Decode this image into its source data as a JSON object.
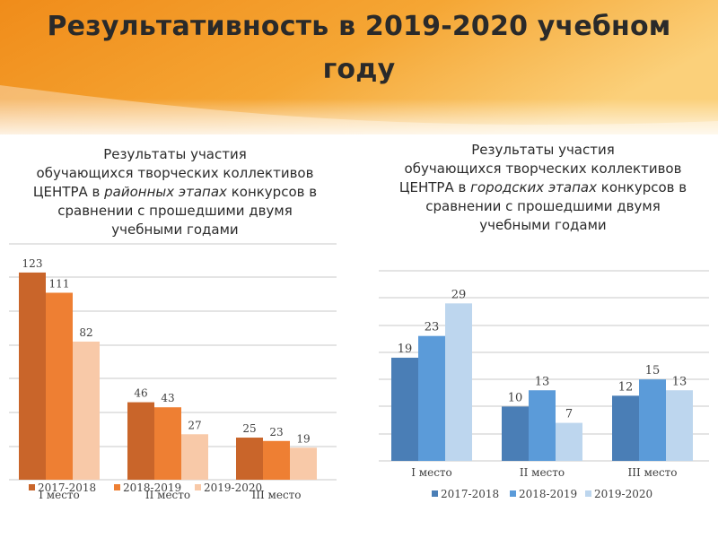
{
  "slide": {
    "title": "Результативность в 2019-2020 учебном году"
  },
  "colors": {
    "band_dark": "#f08c1a",
    "band_light": "#fbd07a",
    "title": "#2a2a2a"
  },
  "left_subtitle": {
    "line1": "Результаты участия",
    "line2": "обучающихся творческих коллективов",
    "line3_before": "ЦЕНТРА в ",
    "line3_italic": "районных этапах",
    "line3_after": " конкурсов в",
    "line4": "сравнении с прошедшими двумя",
    "line5": "учебными годами"
  },
  "right_subtitle": {
    "line1": "Результаты участия",
    "line2": "обучающихся творческих коллективов",
    "line3_before": "ЦЕНТРА в ",
    "line3_italic": "городских этапах",
    "line3_after": " конкурсов  в",
    "line4": "сравнении с прошедшими двумя",
    "line5": "учебными годами"
  },
  "chart_data": [
    {
      "type": "bar",
      "title": "",
      "categories": [
        "I место",
        "II место",
        "III место"
      ],
      "series": [
        {
          "name": "2017-2018",
          "values": [
            123,
            46,
            25
          ],
          "color": "#c9652a"
        },
        {
          "name": "2018-2019",
          "values": [
            111,
            43,
            23
          ],
          "color": "#ee7f33"
        },
        {
          "name": "2019-2020",
          "values": [
            82,
            27,
            19
          ],
          "color": "#f8c9a8"
        }
      ],
      "ylim": [
        0,
        140
      ],
      "grid": true,
      "legend": "bottom",
      "xlabel": "",
      "ylabel": ""
    },
    {
      "type": "bar",
      "title": "",
      "categories": [
        "I место",
        "II место",
        "III место"
      ],
      "series": [
        {
          "name": "2017-2018",
          "values": [
            19,
            10,
            12
          ],
          "color": "#4a7eb6"
        },
        {
          "name": "2018-2019",
          "values": [
            23,
            13,
            15
          ],
          "color": "#5b9bd9"
        },
        {
          "name": "2019-2020",
          "values": [
            29,
            7,
            13
          ],
          "color": "#bdd6ee"
        }
      ],
      "ylim": [
        0,
        35
      ],
      "grid": true,
      "legend": "bottom",
      "xlabel": "",
      "ylabel": ""
    }
  ]
}
